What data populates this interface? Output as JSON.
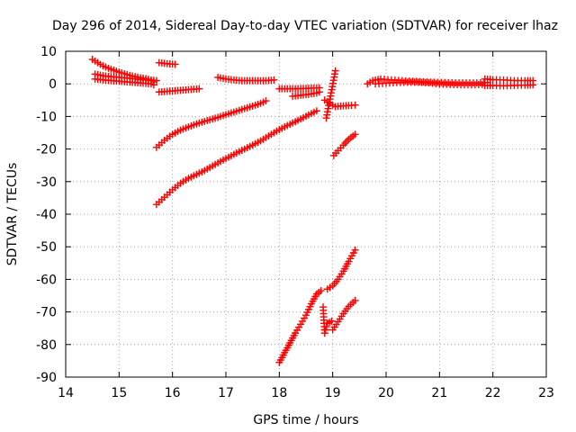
{
  "chart_data": {
    "type": "scatter",
    "title": "Day 296 of 2014, Sidereal Day-to-day VTEC variation (SDTVAR) for receiver lhaz",
    "xlabel": "GPS time / hours",
    "ylabel": "SDTVAR / TECUs",
    "xlim": [
      14,
      23
    ],
    "ylim": [
      -90,
      10
    ],
    "xticks": [
      14,
      15,
      16,
      17,
      18,
      19,
      20,
      21,
      22,
      23
    ],
    "yticks": [
      10,
      0,
      -10,
      -20,
      -30,
      -40,
      -50,
      -60,
      -70,
      -80,
      -90
    ],
    "grid": true,
    "marker": "+",
    "color": "#ff0000",
    "series": [
      {
        "name": "s1",
        "points": [
          [
            14.5,
            7.5
          ],
          [
            14.6,
            6.5
          ],
          [
            14.7,
            5.5
          ],
          [
            14.8,
            4.8
          ],
          [
            14.9,
            4.2
          ],
          [
            15.0,
            3.6
          ],
          [
            15.1,
            3.1
          ],
          [
            15.2,
            2.6
          ],
          [
            15.3,
            2.2
          ],
          [
            15.4,
            1.9
          ],
          [
            15.5,
            1.6
          ],
          [
            15.6,
            1.2
          ],
          [
            15.7,
            1.0
          ]
        ]
      },
      {
        "name": "s2",
        "points": [
          [
            14.55,
            3.0
          ],
          [
            14.7,
            2.5
          ],
          [
            14.85,
            2.2
          ],
          [
            15.0,
            2.0
          ],
          [
            15.15,
            1.8
          ],
          [
            15.3,
            1.5
          ],
          [
            15.45,
            1.3
          ],
          [
            15.6,
            1.0
          ],
          [
            15.65,
            0.6
          ]
        ]
      },
      {
        "name": "s3",
        "points": [
          [
            14.55,
            1.5
          ],
          [
            14.7,
            1.2
          ],
          [
            14.85,
            1.0
          ],
          [
            15.0,
            0.8
          ],
          [
            15.15,
            0.6
          ],
          [
            15.3,
            0.4
          ],
          [
            15.45,
            0.2
          ],
          [
            15.6,
            0.0
          ],
          [
            15.65,
            -0.3
          ]
        ]
      },
      {
        "name": "s4",
        "points": [
          [
            15.75,
            6.5
          ],
          [
            15.85,
            6.3
          ],
          [
            15.95,
            6.1
          ],
          [
            16.05,
            6.0
          ]
        ]
      },
      {
        "name": "s5",
        "points": [
          [
            15.75,
            -2.5
          ],
          [
            15.9,
            -2.3
          ],
          [
            16.05,
            -2.1
          ],
          [
            16.2,
            -1.9
          ],
          [
            16.35,
            -1.7
          ],
          [
            16.5,
            -1.5
          ]
        ]
      },
      {
        "name": "s6",
        "points": [
          [
            16.85,
            2.0
          ],
          [
            17.0,
            1.5
          ],
          [
            17.15,
            1.2
          ],
          [
            17.3,
            1.0
          ],
          [
            17.45,
            1.0
          ],
          [
            17.6,
            1.0
          ],
          [
            17.75,
            1.0
          ],
          [
            17.9,
            1.2
          ]
        ]
      },
      {
        "name": "s7",
        "points": [
          [
            18.0,
            -1.5
          ],
          [
            18.15,
            -1.5
          ],
          [
            18.3,
            -1.5
          ],
          [
            18.45,
            -1.4
          ],
          [
            18.6,
            -1.3
          ],
          [
            18.75,
            -1.2
          ]
        ]
      },
      {
        "name": "s8",
        "points": [
          [
            18.25,
            -3.8
          ],
          [
            18.4,
            -3.5
          ],
          [
            18.55,
            -3.2
          ],
          [
            18.7,
            -2.8
          ],
          [
            18.75,
            -2.5
          ]
        ]
      },
      {
        "name": "s9",
        "points": [
          [
            15.7,
            -19.5
          ],
          [
            15.85,
            -17.3
          ],
          [
            16.0,
            -15.5
          ],
          [
            16.15,
            -14.2
          ],
          [
            16.3,
            -13.2
          ],
          [
            16.45,
            -12.3
          ],
          [
            16.6,
            -11.5
          ],
          [
            16.75,
            -10.8
          ],
          [
            16.9,
            -10.0
          ],
          [
            17.05,
            -9.2
          ],
          [
            17.2,
            -8.4
          ],
          [
            17.35,
            -7.6
          ],
          [
            17.5,
            -6.8
          ],
          [
            17.65,
            -6.0
          ],
          [
            17.75,
            -5.2
          ]
        ]
      },
      {
        "name": "s10",
        "points": [
          [
            15.7,
            -37.0
          ],
          [
            15.85,
            -34.8
          ],
          [
            16.0,
            -32.5
          ],
          [
            16.15,
            -30.5
          ],
          [
            16.3,
            -29.0
          ],
          [
            16.45,
            -27.8
          ],
          [
            16.6,
            -26.6
          ],
          [
            16.75,
            -25.2
          ],
          [
            16.9,
            -23.8
          ],
          [
            17.05,
            -22.5
          ],
          [
            17.2,
            -21.2
          ],
          [
            17.35,
            -20.0
          ],
          [
            17.5,
            -18.8
          ],
          [
            17.65,
            -17.5
          ],
          [
            17.8,
            -16.0
          ],
          [
            17.95,
            -14.5
          ],
          [
            18.1,
            -13.2
          ],
          [
            18.25,
            -12.0
          ],
          [
            18.4,
            -10.8
          ],
          [
            18.55,
            -9.5
          ],
          [
            18.7,
            -8.3
          ]
        ]
      },
      {
        "name": "s11",
        "points": [
          [
            18.85,
            -5.0
          ],
          [
            18.95,
            -6.0
          ],
          [
            19.05,
            -7.0
          ],
          [
            19.15,
            -6.8
          ],
          [
            19.25,
            -6.7
          ],
          [
            19.35,
            -6.6
          ],
          [
            19.42,
            -6.5
          ]
        ]
      },
      {
        "name": "s12",
        "points": [
          [
            18.88,
            -10.5
          ],
          [
            19.05,
            4.0
          ]
        ]
      },
      {
        "name": "s13",
        "points": [
          [
            19.02,
            -22.0
          ],
          [
            19.1,
            -20.5
          ],
          [
            19.2,
            -18.8
          ],
          [
            19.3,
            -17.0
          ],
          [
            19.42,
            -15.5
          ]
        ]
      },
      {
        "name": "s14",
        "points": [
          [
            18.0,
            -85.5
          ],
          [
            18.1,
            -82.5
          ],
          [
            18.2,
            -79.5
          ],
          [
            18.3,
            -76.5
          ],
          [
            18.4,
            -73.8
          ],
          [
            18.5,
            -71.0
          ],
          [
            18.6,
            -67.5
          ],
          [
            18.7,
            -64.5
          ],
          [
            18.78,
            -63.5
          ]
        ]
      },
      {
        "name": "s15",
        "points": [
          [
            18.82,
            -68.5
          ],
          [
            18.85,
            -76.5
          ],
          [
            18.9,
            -73.5
          ],
          [
            18.98,
            -72.8
          ]
        ]
      },
      {
        "name": "s16",
        "points": [
          [
            18.9,
            -63.0
          ],
          [
            19.0,
            -62.0
          ],
          [
            19.1,
            -60.0
          ],
          [
            19.2,
            -57.5
          ],
          [
            19.3,
            -54.5
          ],
          [
            19.42,
            -51.0
          ]
        ]
      },
      {
        "name": "s17",
        "points": [
          [
            19.0,
            -75.5
          ],
          [
            19.1,
            -73.0
          ],
          [
            19.2,
            -70.5
          ],
          [
            19.3,
            -68.3
          ],
          [
            19.42,
            -66.5
          ]
        ]
      },
      {
        "name": "s18",
        "points": [
          [
            19.65,
            0.0
          ],
          [
            19.75,
            1.0
          ],
          [
            19.9,
            1.5
          ],
          [
            20.1,
            1.2
          ],
          [
            20.3,
            1.0
          ],
          [
            20.5,
            0.8
          ],
          [
            20.7,
            0.6
          ],
          [
            20.9,
            0.5
          ],
          [
            21.1,
            0.4
          ],
          [
            21.3,
            0.3
          ],
          [
            21.5,
            0.3
          ],
          [
            21.7,
            0.3
          ],
          [
            21.9,
            0.4
          ]
        ]
      },
      {
        "name": "s19",
        "points": [
          [
            19.8,
            0.0
          ],
          [
            20.0,
            0.2
          ],
          [
            20.2,
            0.4
          ],
          [
            20.4,
            0.5
          ],
          [
            20.6,
            0.5
          ],
          [
            20.8,
            0.3
          ],
          [
            21.0,
            0.0
          ],
          [
            21.2,
            -0.2
          ],
          [
            21.4,
            -0.3
          ],
          [
            21.6,
            -0.3
          ],
          [
            21.8,
            -0.2
          ]
        ]
      },
      {
        "name": "s20",
        "points": [
          [
            21.85,
            1.5
          ],
          [
            22.0,
            1.3
          ],
          [
            22.2,
            1.2
          ],
          [
            22.4,
            1.0
          ],
          [
            22.6,
            1.0
          ],
          [
            22.75,
            1.0
          ]
        ]
      },
      {
        "name": "s21",
        "points": [
          [
            21.85,
            -0.5
          ],
          [
            22.0,
            -0.5
          ],
          [
            22.2,
            -0.6
          ],
          [
            22.4,
            -0.5
          ],
          [
            22.6,
            -0.4
          ],
          [
            22.75,
            -0.3
          ]
        ]
      }
    ]
  }
}
